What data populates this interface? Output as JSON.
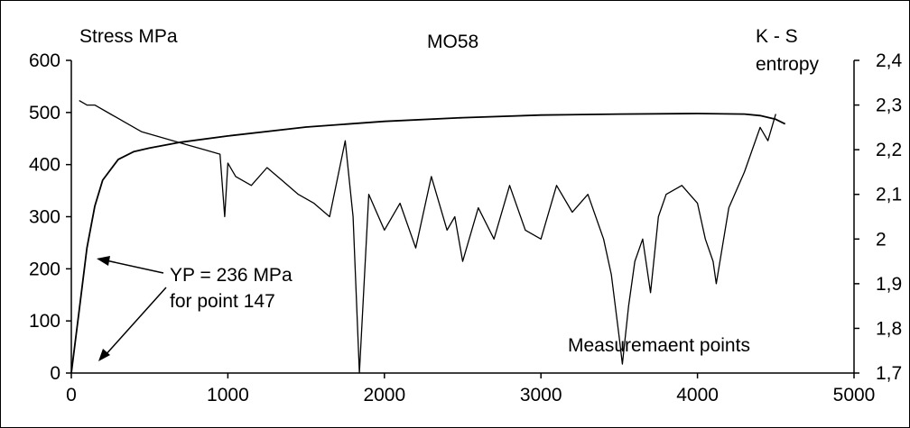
{
  "chart_data": {
    "type": "line",
    "title": "MO58",
    "ylabel_left": "Stress MPa",
    "ylabel_right_line1": "K - S",
    "ylabel_right_line2": "entropy",
    "xlabel": "Measuremaent  points",
    "xlim": [
      0,
      5000
    ],
    "ylim_left": [
      0,
      600
    ],
    "ylim_right": [
      1.7,
      2.4
    ],
    "grid": false,
    "x_ticks": [
      "0",
      "1000",
      "2000",
      "3000",
      "4000",
      "5000"
    ],
    "y_left_ticks": [
      "0",
      "100",
      "200",
      "300",
      "400",
      "500",
      "600"
    ],
    "y_right_ticks": [
      "1,7",
      "1,8",
      "1,9",
      "2",
      "2,1",
      "2,2",
      "2,3",
      "2,4"
    ],
    "annotation": {
      "line1": "YP = 236  MPa",
      "line2": "for point 147"
    },
    "series": [
      {
        "axis": "left",
        "x": [
          0,
          50,
          100,
          150,
          200,
          300,
          400,
          500,
          700,
          1000,
          1500,
          2000,
          2500,
          3000,
          3500,
          4000,
          4300,
          4400,
          4500,
          4560
        ],
        "values": [
          0,
          120,
          240,
          320,
          370,
          410,
          425,
          432,
          443,
          455,
          472,
          483,
          490,
          495,
          497,
          498,
          497,
          494,
          487,
          478
        ]
      },
      {
        "axis": "right",
        "x": [
          50,
          100,
          150,
          250,
          350,
          450,
          550,
          650,
          750,
          850,
          950,
          980,
          1000,
          1050,
          1150,
          1250,
          1350,
          1450,
          1550,
          1650,
          1750,
          1800,
          1840,
          1900,
          2000,
          2100,
          2200,
          2300,
          2400,
          2450,
          2500,
          2600,
          2700,
          2800,
          2900,
          3000,
          3100,
          3200,
          3300,
          3400,
          3450,
          3500,
          3520,
          3560,
          3600,
          3650,
          3700,
          3750,
          3800,
          3900,
          4000,
          4050,
          4100,
          4120,
          4200,
          4300,
          4400,
          4450,
          4500
        ],
        "values": [
          2.31,
          2.3,
          2.3,
          2.28,
          2.26,
          2.24,
          2.23,
          2.22,
          2.21,
          2.2,
          2.19,
          2.05,
          2.17,
          2.14,
          2.12,
          2.16,
          2.13,
          2.1,
          2.08,
          2.05,
          2.22,
          2.05,
          1.7,
          2.1,
          2.02,
          2.08,
          1.98,
          2.14,
          2.02,
          2.05,
          1.95,
          2.07,
          2.0,
          2.12,
          2.02,
          2.0,
          2.12,
          2.06,
          2.1,
          2.0,
          1.92,
          1.78,
          1.72,
          1.85,
          1.95,
          2.0,
          1.88,
          2.05,
          2.1,
          2.12,
          2.08,
          2.0,
          1.95,
          1.9,
          2.07,
          2.15,
          2.25,
          2.22,
          2.28
        ]
      }
    ]
  }
}
